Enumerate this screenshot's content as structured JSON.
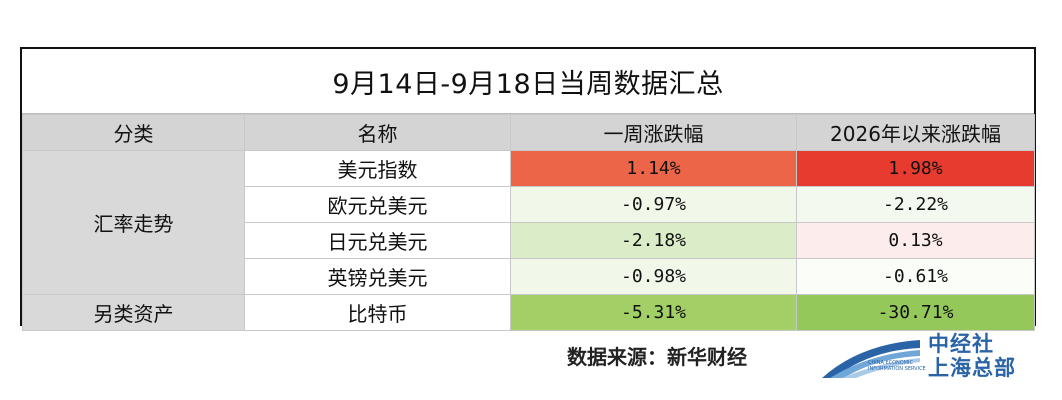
{
  "title": "9月14日-9月18日当周数据汇总",
  "headers": [
    "分类",
    "名称",
    "一周涨跌幅",
    "2026年以来涨跌幅"
  ],
  "categories": {
    "fx": "汇率走势",
    "alt": "另类资产"
  },
  "rows": [
    {
      "name": "美元指数",
      "week": "1.14%",
      "ytd": "1.98%",
      "week_color": "#ec6548",
      "ytd_color": "#e63b2e"
    },
    {
      "name": "欧元兑美元",
      "week": "-0.97%",
      "ytd": "-2.22%",
      "week_color": "#f1f8ea",
      "ytd_color": "#f3f9ee"
    },
    {
      "name": "日元兑美元",
      "week": "-2.18%",
      "ytd": "0.13%",
      "week_color": "#daecc8",
      "ytd_color": "#fcecec"
    },
    {
      "name": "英镑兑美元",
      "week": "-0.98%",
      "ytd": "-0.61%",
      "week_color": "#f1f8ea",
      "ytd_color": "#fbfdf9"
    },
    {
      "name": "比特币",
      "week": "-5.31%",
      "ytd": "-30.71%",
      "week_color": "#a3cf67",
      "ytd_color": "#94c85a"
    }
  ],
  "source": "数据来源：新华财经",
  "logo": {
    "line1": "中经社",
    "line2": "上海总部",
    "small1": "CHINA ECONOMIC",
    "small2": "INFORMATION SERVICE"
  }
}
